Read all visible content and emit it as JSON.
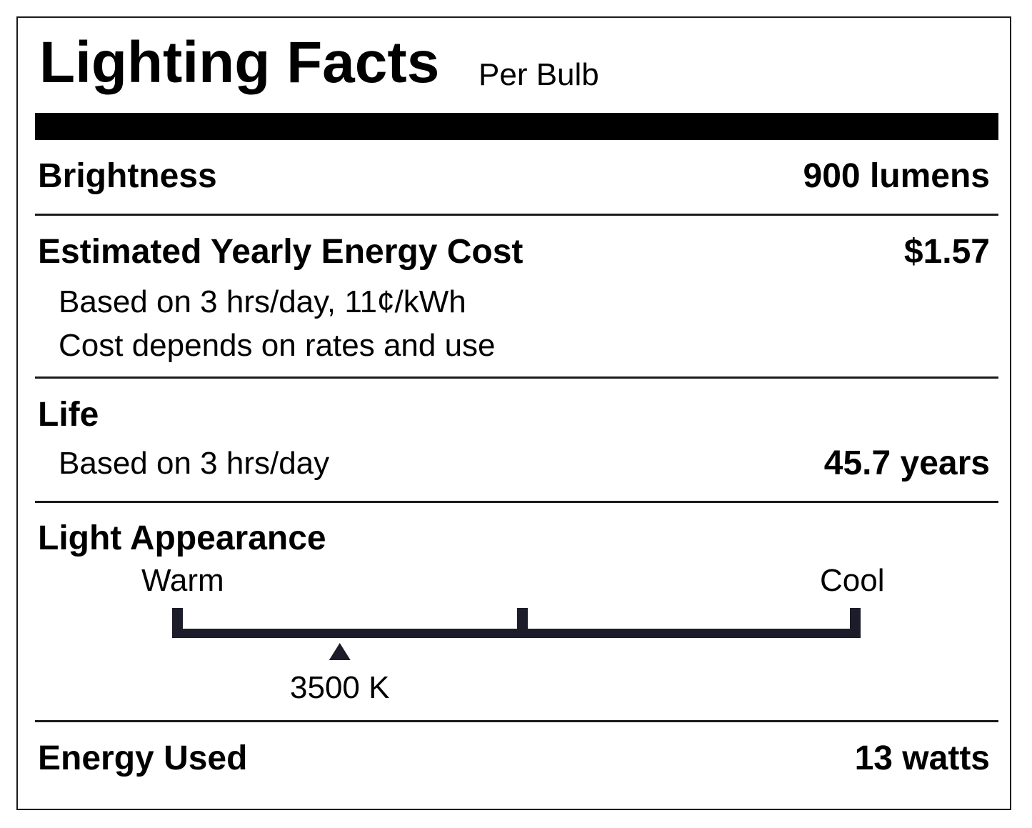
{
  "header": {
    "title": "Lighting Facts",
    "subtitle": "Per Bulb"
  },
  "brightness": {
    "label": "Brightness",
    "value": "900 lumens"
  },
  "energy_cost": {
    "label": "Estimated Yearly Energy Cost",
    "value": "$1.57",
    "note_1": "Based on 3 hrs/day, 11¢/kWh",
    "note_2": "Cost depends on rates and use"
  },
  "life": {
    "label": "Life",
    "note": "Based on 3 hrs/day",
    "value": "45.7 years"
  },
  "light_appearance": {
    "label": "Light Appearance",
    "warm_label": "Warm",
    "cool_label": "Cool",
    "marker_label": "3500 K",
    "marker_position_fraction": 0.24,
    "colors": {
      "scale": "#1c1c2a"
    }
  },
  "energy_used": {
    "label": "Energy Used",
    "value": "13 watts"
  }
}
